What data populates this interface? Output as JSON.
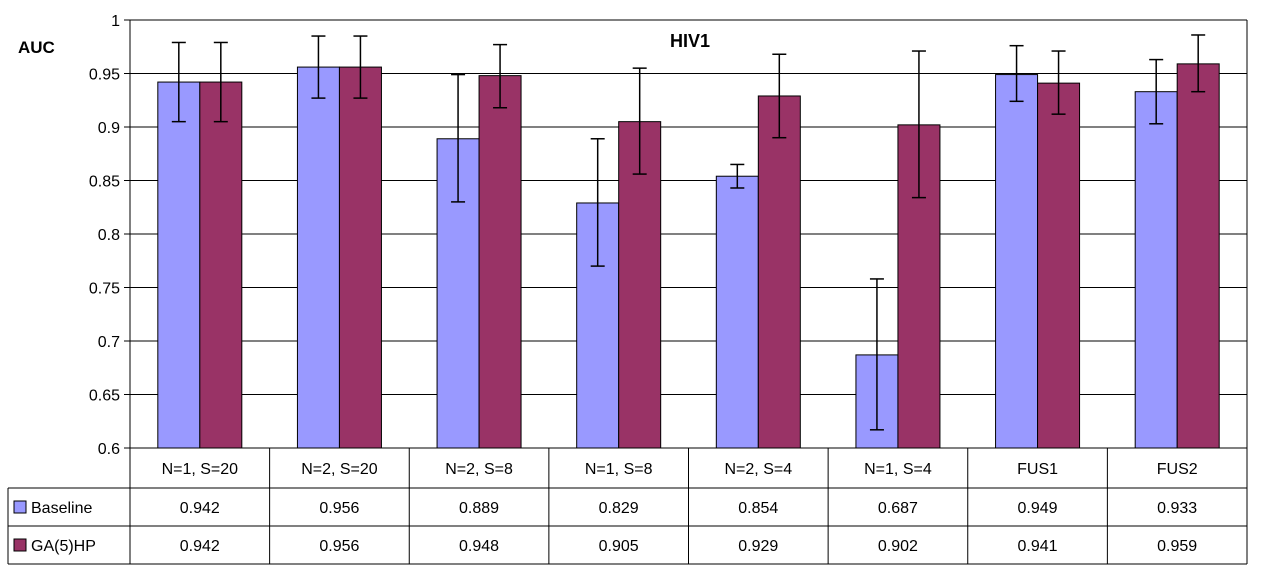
{
  "chart_data": {
    "type": "bar",
    "title": "HIV1",
    "ylabel": "AUC",
    "xlabel": "",
    "ylim": [
      0.6,
      1
    ],
    "yticks": [
      "0.6",
      "0.65",
      "0.7",
      "0.75",
      "0.8",
      "0.85",
      "0.9",
      "0.95",
      "1"
    ],
    "grid": true,
    "legend_placement": "data-table-left",
    "categories": [
      "N=1, S=20",
      "N=2, S=20",
      "N=2, S=8",
      "N=1, S=8",
      "N=2, S=4",
      "N=1, S=4",
      "FUS1",
      "FUS2"
    ],
    "series": [
      {
        "name": "Baseline",
        "color": "#9999ff",
        "values": [
          0.942,
          0.956,
          0.889,
          0.829,
          0.854,
          0.687,
          0.949,
          0.933
        ],
        "labels": [
          "0.942",
          "0.956",
          "0.889",
          "0.829",
          "0.854",
          "0.687",
          "0.949",
          "0.933"
        ],
        "error_low": [
          0.905,
          0.927,
          0.83,
          0.77,
          0.843,
          0.617,
          0.924,
          0.903
        ],
        "error_high": [
          0.979,
          0.985,
          0.949,
          0.889,
          0.865,
          0.758,
          0.976,
          0.963
        ]
      },
      {
        "name": "GA(5)HP",
        "color": "#993366",
        "values": [
          0.942,
          0.956,
          0.948,
          0.905,
          0.929,
          0.902,
          0.941,
          0.959
        ],
        "labels": [
          "0.942",
          "0.956",
          "0.948",
          "0.905",
          "0.929",
          "0.902",
          "0.941",
          "0.959"
        ],
        "error_low": [
          0.905,
          0.927,
          0.918,
          0.856,
          0.89,
          0.834,
          0.912,
          0.933
        ],
        "error_high": [
          0.979,
          0.985,
          0.977,
          0.955,
          0.968,
          0.971,
          0.971,
          0.986
        ]
      }
    ]
  }
}
